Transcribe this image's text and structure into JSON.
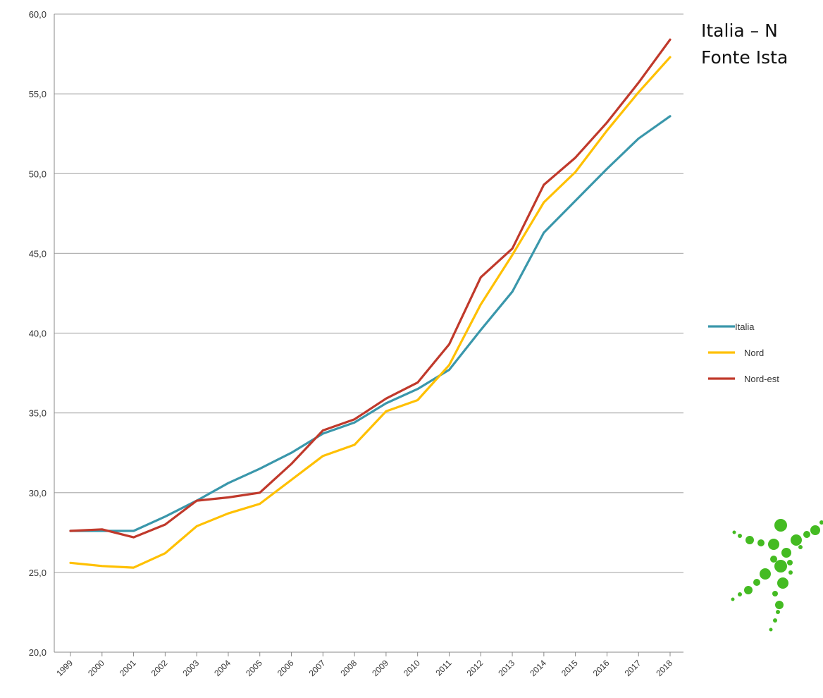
{
  "chart_data": {
    "type": "line",
    "title_lines": [
      "Italia – N",
      "Fonte Ista"
    ],
    "x": [
      "1999",
      "2000",
      "2001",
      "2002",
      "2003",
      "2004",
      "2005",
      "2006",
      "2007",
      "2008",
      "2009",
      "2010",
      "2011",
      "2012",
      "2013",
      "2014",
      "2015",
      "2016",
      "2017",
      "2018"
    ],
    "y_tick_labels": [
      "20,0",
      "25,0",
      "30,0",
      "35,0",
      "40,0",
      "45,0",
      "50,0",
      "55,0",
      "60,0"
    ],
    "ylim": [
      20,
      60
    ],
    "y_tick_step": 5,
    "grid": "horizontal",
    "legend_position": "right",
    "series": [
      {
        "name": "Italia",
        "color": "#3a97ab",
        "values": [
          27.6,
          27.6,
          27.6,
          28.5,
          29.5,
          30.6,
          31.5,
          32.5,
          33.7,
          34.4,
          35.6,
          36.5,
          37.7,
          40.2,
          42.6,
          46.3,
          48.3,
          50.3,
          52.2,
          53.6
        ]
      },
      {
        "name": "Nord",
        "color": "#ffc000",
        "values": [
          25.6,
          25.4,
          25.3,
          26.2,
          27.9,
          28.7,
          29.3,
          30.8,
          32.3,
          33.0,
          35.1,
          35.8,
          38.0,
          41.8,
          44.9,
          48.2,
          50.1,
          52.7,
          55.1,
          57.3
        ]
      },
      {
        "name": "Nord-est",
        "color": "#c0392b",
        "values": [
          27.6,
          27.7,
          27.2,
          28.0,
          29.5,
          29.7,
          30.0,
          31.8,
          33.9,
          34.6,
          35.9,
          36.9,
          39.3,
          43.5,
          45.3,
          49.3,
          51.0,
          53.2,
          55.7,
          58.4
        ]
      }
    ]
  },
  "logo": {
    "name": "green-figure-logo",
    "color": "#44bb22"
  }
}
